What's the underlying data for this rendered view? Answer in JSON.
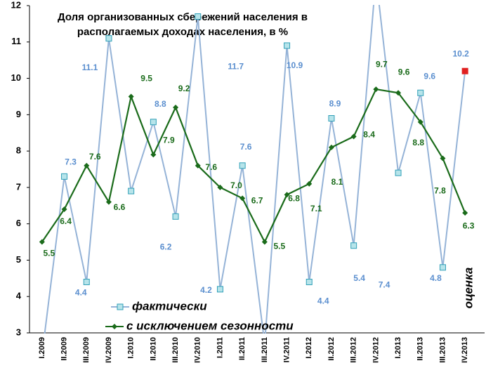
{
  "chart_data": {
    "type": "line",
    "title": [
      "Доля организованных сбережений населения в",
      "располагаемых доходах населения, в %"
    ],
    "annotation": "оценка",
    "categories": [
      "I.2009",
      "II.2009",
      "III.2009",
      "IV.2009",
      "I.2010",
      "II.2010",
      "III.2010",
      "IV.2010",
      "I.2011",
      "II.2011",
      "III.2011",
      "IV.2011",
      "I.2012",
      "II.2012",
      "III.2012",
      "IV.2012",
      "I.2013",
      "II.2013",
      "III.2013",
      "IV.2013"
    ],
    "series": [
      {
        "name": "фактически",
        "color": "#95b3d7",
        "marker_color": "#b7e4ea",
        "marker_edge": "#31a0b8",
        "label_color": "#5b8fcf",
        "highlight": {
          "index": 19,
          "color": "#e02020"
        },
        "values": [
          2.4,
          7.3,
          4.4,
          11.1,
          6.9,
          8.8,
          6.2,
          11.7,
          4.2,
          7.6,
          2.7,
          10.9,
          4.4,
          8.9,
          5.4,
          12.8,
          7.4,
          9.6,
          4.8,
          10.2
        ],
        "value_labels": [
          null,
          "7.3",
          "4.4",
          "11.1",
          null,
          "8.8",
          "6.2",
          "11.7",
          "4.2",
          "7.6",
          null,
          "10.9",
          "4.4",
          "8.9",
          "5.4",
          null,
          "7.4",
          "9.6",
          "4.8",
          "10.2"
        ]
      },
      {
        "name": "с исключением сезонности",
        "color": "#1a6b1a",
        "marker_color": "#1a6b1a",
        "marker_edge": "#1a6b1a",
        "label_color": "#1a6b1a",
        "values": [
          5.5,
          6.4,
          7.6,
          6.6,
          9.5,
          7.9,
          9.2,
          7.6,
          7.0,
          6.7,
          5.5,
          6.8,
          7.1,
          8.1,
          8.4,
          9.7,
          9.6,
          8.8,
          7.8,
          6.3
        ],
        "value_labels": [
          "5.5",
          "6.4",
          "7.6",
          "6.6",
          "9.5",
          "7.9",
          "9.2",
          "7.6",
          "7.0",
          "6.7",
          "5.5",
          "6.8",
          "7.1",
          "8.1",
          "8.4",
          "9.7",
          "9.6",
          "8.8",
          "7.8",
          "6.3"
        ]
      }
    ],
    "ylim": [
      3,
      12
    ],
    "yticks": [
      3,
      4,
      5,
      6,
      7,
      8,
      9,
      10,
      11,
      12
    ],
    "grid": false,
    "legend": "lower left"
  }
}
